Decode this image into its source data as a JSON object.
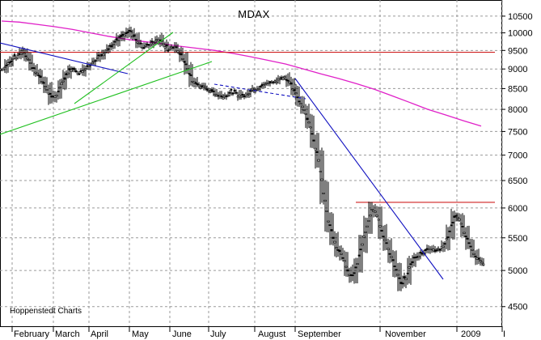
{
  "chart_data": {
    "type": "candlestick",
    "title": "MDAX",
    "source_label": "Hoppenstedt Charts",
    "y_scale": "log",
    "ylim": [
      4300,
      10800
    ],
    "y_ticks": [
      4500,
      5000,
      5500,
      6000,
      6500,
      7000,
      7500,
      8000,
      8500,
      9000,
      9500,
      10000,
      10500
    ],
    "x_months": [
      "February",
      "March",
      "April",
      "May",
      "June",
      "July",
      "August",
      "September",
      "November",
      "2009",
      "I"
    ],
    "grid": true,
    "price_series": [
      9000,
      9150,
      9280,
      9350,
      9480,
      9300,
      9050,
      8900,
      8700,
      8500,
      8250,
      8350,
      8600,
      8850,
      9000,
      8950,
      8900,
      9050,
      9150,
      9250,
      9350,
      9480,
      9600,
      9700,
      9850,
      9950,
      10050,
      9900,
      9700,
      9600,
      9650,
      9750,
      9850,
      9700,
      9550,
      9600,
      9500,
      9300,
      9000,
      8700,
      8600,
      8550,
      8500,
      8450,
      8380,
      8300,
      8350,
      8420,
      8380,
      8300,
      8350,
      8450,
      8500,
      8550,
      8600,
      8650,
      8680,
      8750,
      8800,
      8650,
      8450,
      8200,
      8000,
      7700,
      7300,
      6900,
      6300,
      5800,
      5500,
      5300,
      5200,
      5000,
      4900,
      5100,
      5400,
      5700,
      6000,
      5900,
      5600,
      5400,
      5200,
      5000,
      4800,
      4900,
      5100,
      5200,
      5250,
      5300,
      5350,
      5300,
      5320,
      5400,
      5600,
      5850,
      5800,
      5600,
      5400,
      5250,
      5150,
      5100
    ],
    "overlays": {
      "moving_average_200": {
        "color": "#e020c8",
        "values": [
          10350,
          10320,
          10250,
          10180,
          10100,
          10000,
          9900,
          9820,
          9750,
          9690,
          9620,
          9560,
          9500,
          9420,
          9330,
          9230,
          9130,
          9000,
          8870,
          8750,
          8620,
          8480,
          8320,
          8160,
          8000,
          7870,
          7740,
          7620
        ]
      },
      "resistance_lines": [
        {
          "color": "#d02020",
          "value": 9450
        },
        {
          "color": "#d02020",
          "value": 6100
        }
      ],
      "trend_lines": [
        {
          "color": "#1010c0",
          "style": "solid"
        },
        {
          "color": "#1010c0",
          "style": "solid"
        },
        {
          "color": "#1010c0",
          "style": "dashed"
        },
        {
          "color": "#20c020",
          "style": "solid"
        },
        {
          "color": "#20c020",
          "style": "solid"
        }
      ]
    }
  }
}
